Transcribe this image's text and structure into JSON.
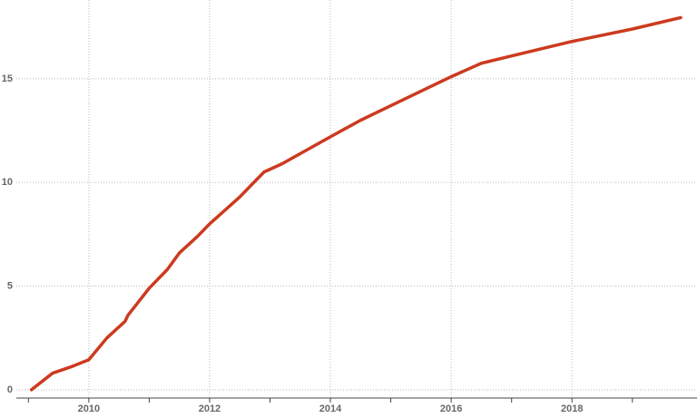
{
  "chart_data": {
    "type": "line",
    "x": [
      2009.05,
      2009.4,
      2009.7,
      2010.0,
      2010.3,
      2010.6,
      2010.65,
      2011.0,
      2011.3,
      2011.5,
      2011.8,
      2012.0,
      2012.5,
      2012.9,
      2013.2,
      2014.0,
      2014.5,
      2015.0,
      2015.5,
      2016.0,
      2016.5,
      2017.0,
      2018.0,
      2019.0,
      2019.8
    ],
    "series": [
      {
        "color": "#cc3a1f",
        "values": [
          0,
          0.8,
          1.1,
          1.45,
          2.5,
          3.3,
          3.6,
          4.9,
          5.8,
          6.6,
          7.4,
          8.0,
          9.3,
          10.5,
          10.9,
          12.2,
          13.0,
          13.7,
          14.4,
          15.1,
          15.75,
          16.1,
          16.8,
          17.4,
          17.95
        ]
      }
    ],
    "xlim": [
      2008.8,
      2020.07
    ],
    "ylim": [
      -0.4,
      18.8
    ],
    "xticks": [
      2010,
      2012,
      2014,
      2016,
      2018
    ],
    "xminor_ticks": [
      2009,
      2011,
      2013,
      2015,
      2017,
      2019
    ],
    "yticks": [
      0,
      5,
      10,
      15
    ],
    "grid": true
  }
}
